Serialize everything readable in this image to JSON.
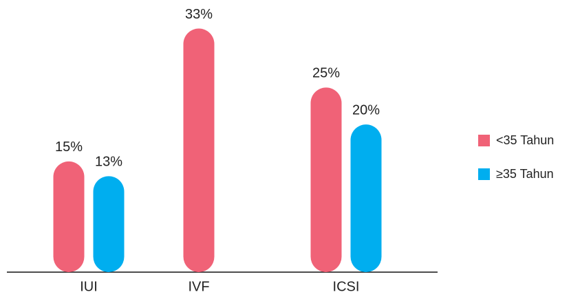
{
  "chart_data": {
    "type": "bar",
    "categories": [
      "IUI",
      "IVF",
      "ICSI"
    ],
    "series": [
      {
        "name": "<35 Tahun",
        "color": "#f06277",
        "values": [
          15,
          33,
          25
        ],
        "value_labels": [
          "15%",
          "33%",
          "25%"
        ]
      },
      {
        "name": "≥35 Tahun",
        "color": "#00aeef",
        "values": [
          13,
          null,
          20
        ],
        "value_labels": [
          "13%",
          null,
          "20%"
        ]
      }
    ],
    "ylim": [
      0,
      35
    ],
    "legend": "right"
  }
}
